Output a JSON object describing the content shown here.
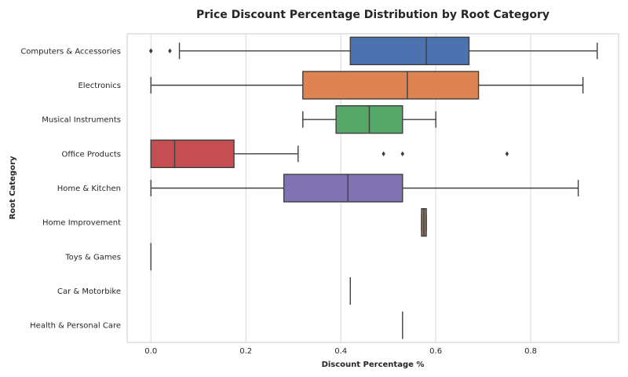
{
  "chart_data": {
    "type": "box",
    "title": "Price Discount Percentage Distribution by Root Category",
    "xlabel": "Discount Percentage %",
    "ylabel": "Root Category",
    "xlim": [
      -0.05,
      0.985
    ],
    "xticks": [
      0.0,
      0.2,
      0.4,
      0.6,
      0.8
    ],
    "xtick_labels": [
      "0.0",
      "0.2",
      "0.4",
      "0.6",
      "0.8"
    ],
    "grid": true,
    "orientation": "horizontal",
    "categories": [
      "Computers & Accessories",
      "Electronics",
      "Musical Instruments",
      "Office Products",
      "Home & Kitchen",
      "Home Improvement",
      "Toys & Games",
      "Car & Motorbike",
      "Health & Personal Care"
    ],
    "colors": [
      "#4c72b0",
      "#dd8452",
      "#55a868",
      "#c44e52",
      "#8172b3",
      "#937860",
      "#da8bc3",
      "#8c8c8c",
      "#ccb974"
    ],
    "boxes": [
      {
        "whislo": 0.06,
        "q1": 0.42,
        "med": 0.58,
        "q3": 0.67,
        "whishi": 0.94,
        "fliers": [
          0.0,
          0.0,
          0.04
        ]
      },
      {
        "whislo": 0.0,
        "q1": 0.32,
        "med": 0.54,
        "q3": 0.69,
        "whishi": 0.91,
        "fliers": []
      },
      {
        "whislo": 0.32,
        "q1": 0.39,
        "med": 0.46,
        "q3": 0.53,
        "whishi": 0.6,
        "fliers": []
      },
      {
        "whislo": 0.0,
        "q1": 0.0,
        "med": 0.05,
        "q3": 0.175,
        "whishi": 0.31,
        "fliers": [
          0.49,
          0.53,
          0.75
        ]
      },
      {
        "whislo": 0.0,
        "q1": 0.28,
        "med": 0.415,
        "q3": 0.53,
        "whishi": 0.9,
        "fliers": []
      },
      {
        "whislo": 0.57,
        "q1": 0.57,
        "med": 0.575,
        "q3": 0.58,
        "whishi": 0.58,
        "fliers": []
      },
      {
        "whislo": 0.0,
        "q1": 0.0,
        "med": 0.0,
        "q3": 0.0,
        "whishi": 0.0,
        "fliers": []
      },
      {
        "whislo": 0.42,
        "q1": 0.42,
        "med": 0.42,
        "q3": 0.42,
        "whishi": 0.42,
        "fliers": []
      },
      {
        "whislo": 0.53,
        "q1": 0.53,
        "med": 0.53,
        "q3": 0.53,
        "whishi": 0.53,
        "fliers": []
      }
    ]
  }
}
